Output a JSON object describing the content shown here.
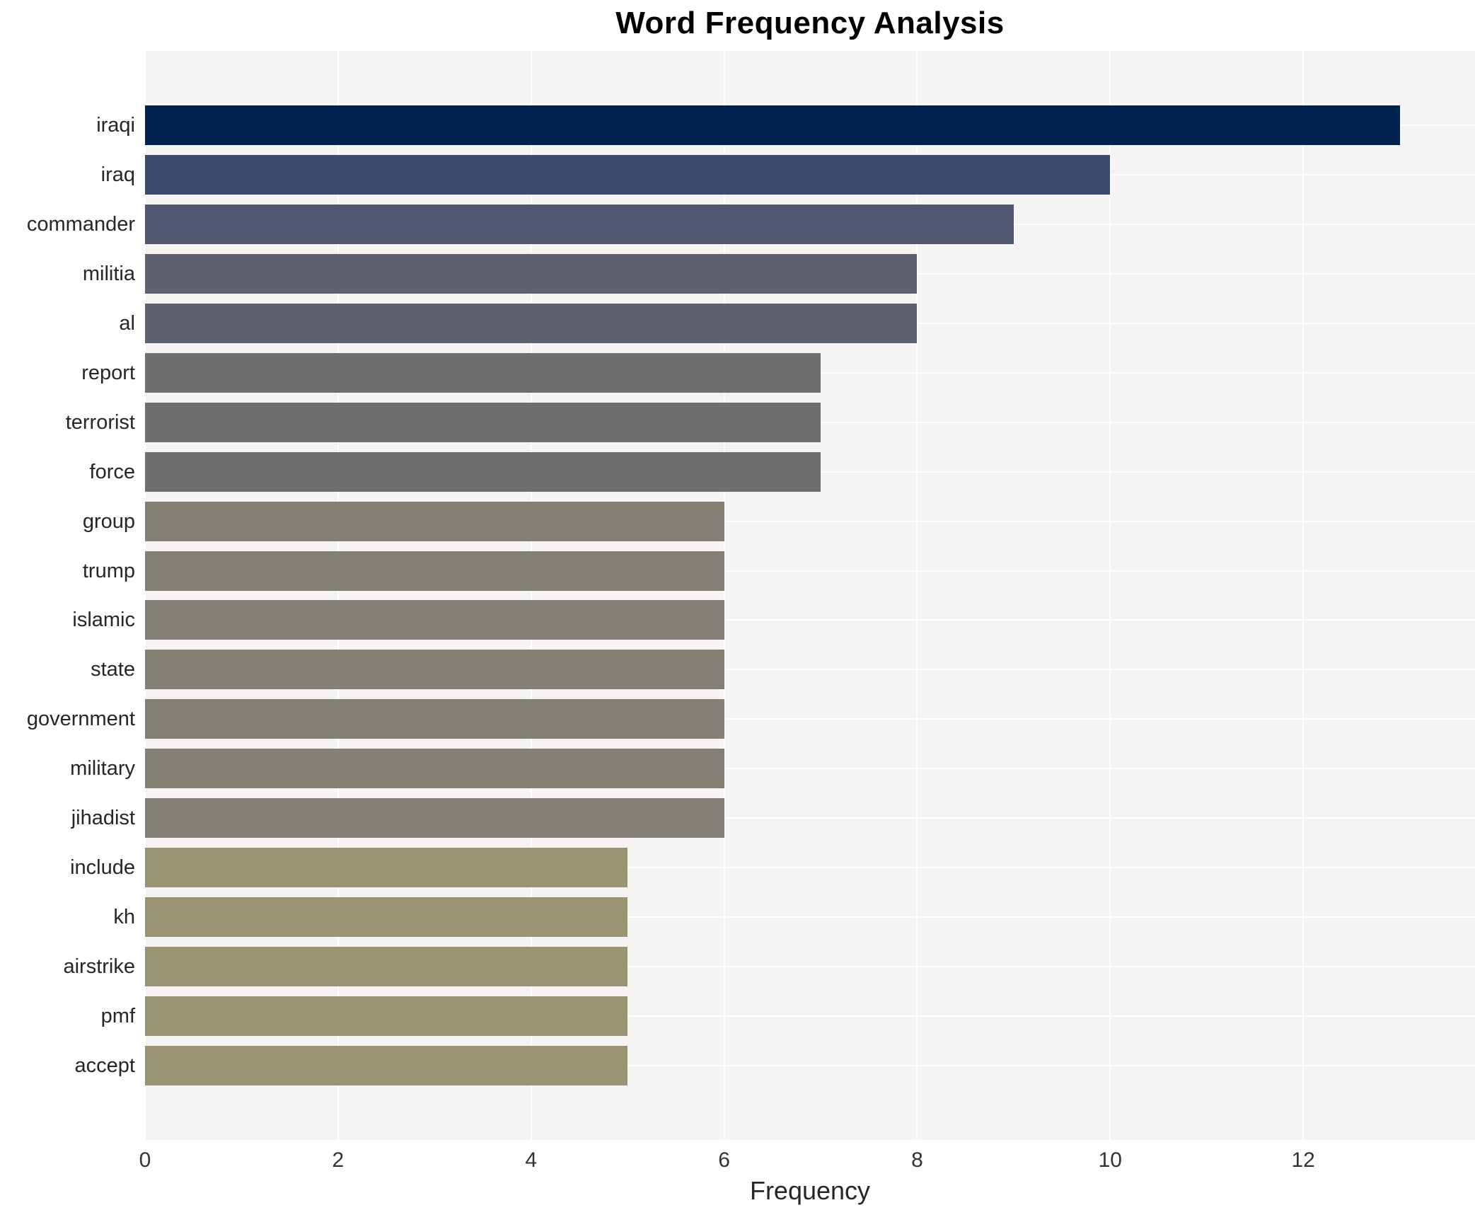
{
  "chart_data": {
    "type": "bar",
    "orientation": "horizontal",
    "title": "Word Frequency Analysis",
    "xlabel": "Frequency",
    "ylabel": "",
    "categories": [
      "iraqi",
      "iraq",
      "commander",
      "militia",
      "al",
      "report",
      "terrorist",
      "force",
      "group",
      "trump",
      "islamic",
      "state",
      "government",
      "military",
      "jihadist",
      "include",
      "kh",
      "airstrike",
      "pmf",
      "accept"
    ],
    "values": [
      13,
      10,
      9,
      8,
      8,
      7,
      7,
      7,
      6,
      6,
      6,
      6,
      6,
      6,
      6,
      5,
      5,
      5,
      5,
      5
    ],
    "x_ticks": [
      0,
      2,
      4,
      6,
      8,
      10,
      12
    ],
    "xlim": [
      0,
      13.78
    ],
    "grid": true,
    "legend": false,
    "colors": {
      "figure_background": "#ffffff",
      "plot_background": "#f5f4f2",
      "gridline": "#ffffff",
      "label_text": "#262626",
      "tick_text": "#333333",
      "bar_colors_by_value": {
        "13": "#00224e",
        "10": "#3b4a6e",
        "9": "#4e5670",
        "8": "#5e6170",
        "7": "#6f6e6e",
        "6": "#838076",
        "5": "#9b9474"
      }
    }
  }
}
